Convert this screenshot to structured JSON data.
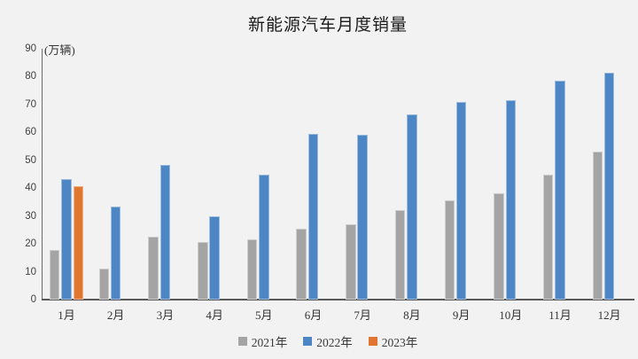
{
  "title": "新能源汽车月度销量",
  "y_unit_label": "(万辆)",
  "colors": {
    "background": "#F2F2F2",
    "axis": "#595959",
    "series_2021": "#A4A4A4",
    "series_2022": "#4D86C4",
    "series_2023": "#E0762F"
  },
  "chart_data": {
    "type": "bar",
    "title": "新能源汽车月度销量",
    "ylabel": "(万辆)",
    "xlabel": "",
    "ylim": [
      0,
      90
    ],
    "yticks": [
      0,
      10,
      20,
      30,
      40,
      50,
      60,
      70,
      80,
      90
    ],
    "grid": false,
    "legend_position": "bottom",
    "categories": [
      "1月",
      "2月",
      "3月",
      "4月",
      "5月",
      "6月",
      "7月",
      "8月",
      "9月",
      "10月",
      "11月",
      "12月"
    ],
    "series": [
      {
        "name": "2021年",
        "color": "#A4A4A4",
        "values": [
          17.9,
          11.0,
          22.6,
          20.6,
          21.7,
          25.6,
          27.1,
          32.1,
          35.7,
          38.3,
          45.0,
          53.1
        ]
      },
      {
        "name": "2022年",
        "color": "#4D86C4",
        "values": [
          43.1,
          33.4,
          48.4,
          29.9,
          44.7,
          59.6,
          59.3,
          66.6,
          70.8,
          71.4,
          78.6,
          81.4
        ]
      },
      {
        "name": "2023年",
        "color": "#E0762F",
        "values": [
          40.8,
          null,
          null,
          null,
          null,
          null,
          null,
          null,
          null,
          null,
          null,
          null
        ]
      }
    ]
  }
}
